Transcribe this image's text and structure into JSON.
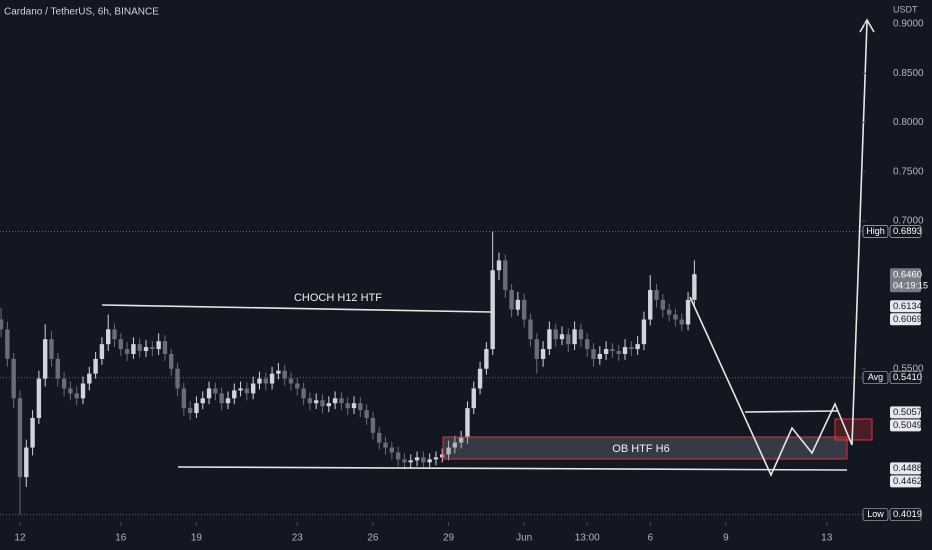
{
  "header": {
    "title": "Cardano / TetherUS, 6h, BINANCE"
  },
  "chart_data": {
    "type": "candlestick",
    "up_color": "#d1d4dc",
    "down_color": "#6a6d78",
    "y_axis_label": "USDT",
    "annotations": [
      "CHOCH H12 HTF",
      "OB HTF H6"
    ],
    "xlim": [
      -0.17,
      136.6
    ],
    "xticks": [
      {
        "value": 3,
        "label": "12"
      },
      {
        "value": 19,
        "label": "16"
      },
      {
        "value": 31,
        "label": "19"
      },
      {
        "value": 47,
        "label": "23"
      },
      {
        "value": 59,
        "label": "26"
      },
      {
        "value": 71,
        "label": "29"
      },
      {
        "value": 83,
        "label": "Jun"
      },
      {
        "value": 93,
        "label": "13:00"
      },
      {
        "value": 103,
        "label": "6"
      },
      {
        "value": 115,
        "label": "9"
      },
      {
        "value": 131,
        "label": "13"
      }
    ],
    "ylim": [
      0.3944,
      0.9244
    ],
    "yticks": [
      {
        "value": 0.9,
        "label": "0.9000"
      },
      {
        "value": 0.85,
        "label": "0.8500"
      },
      {
        "value": 0.8,
        "label": "0.8000"
      },
      {
        "value": 0.75,
        "label": "0.7500"
      },
      {
        "value": 0.7,
        "label": "0.7000"
      },
      {
        "value": 0.55,
        "label": "0.5500"
      }
    ],
    "price_labels": [
      {
        "tag": "High",
        "value": 0.6893,
        "value_label": "0.6893",
        "style": "tag",
        "line": true
      },
      {
        "value": 0.646,
        "value_label": "0.6460",
        "extra": "04:19:15",
        "style": "current"
      },
      {
        "value": 0.6134,
        "value_label": "0.6134",
        "style": "plain"
      },
      {
        "value": 0.6069,
        "value_label": "0.6069",
        "style": "plain"
      },
      {
        "tag": "Avg",
        "value": 0.541,
        "value_label": "0.5410",
        "style": "tag",
        "line": true
      },
      {
        "value": 0.5057,
        "value_label": "0.5057",
        "style": "plain"
      },
      {
        "value": 0.5049,
        "value_label": "0.5049",
        "style": "plain"
      },
      {
        "value": 0.4488,
        "value_label": "0.4488",
        "style": "plain"
      },
      {
        "value": 0.4462,
        "value_label": "0.4462",
        "style": "plain"
      },
      {
        "tag": "Low",
        "value": 0.4019,
        "value_label": "0.4019",
        "style": "tag",
        "line": true
      }
    ],
    "ohlc": [
      [
        0.6,
        0.612,
        0.582,
        0.59
      ],
      [
        0.59,
        0.598,
        0.552,
        0.56
      ],
      [
        0.56,
        0.566,
        0.51,
        0.52
      ],
      [
        0.52,
        0.528,
        0.4019,
        0.44
      ],
      [
        0.44,
        0.478,
        0.43,
        0.47
      ],
      [
        0.47,
        0.508,
        0.462,
        0.5
      ],
      [
        0.5,
        0.548,
        0.494,
        0.54
      ],
      [
        0.54,
        0.595,
        0.532,
        0.58
      ],
      [
        0.58,
        0.588,
        0.552,
        0.56
      ],
      [
        0.56,
        0.566,
        0.532,
        0.54
      ],
      [
        0.54,
        0.546,
        0.522,
        0.53
      ],
      [
        0.53,
        0.537,
        0.518,
        0.525
      ],
      [
        0.525,
        0.532,
        0.513,
        0.52
      ],
      [
        0.52,
        0.542,
        0.514,
        0.535
      ],
      [
        0.535,
        0.552,
        0.528,
        0.545
      ],
      [
        0.545,
        0.567,
        0.54,
        0.56
      ],
      [
        0.56,
        0.582,
        0.554,
        0.575
      ],
      [
        0.575,
        0.605,
        0.568,
        0.59
      ],
      [
        0.59,
        0.596,
        0.572,
        0.58
      ],
      [
        0.58,
        0.586,
        0.563,
        0.57
      ],
      [
        0.57,
        0.577,
        0.558,
        0.565
      ],
      [
        0.565,
        0.582,
        0.56,
        0.575
      ],
      [
        0.575,
        0.581,
        0.561,
        0.568
      ],
      [
        0.568,
        0.579,
        0.562,
        0.572
      ],
      [
        0.572,
        0.578,
        0.563,
        0.57
      ],
      [
        0.57,
        0.586,
        0.564,
        0.578
      ],
      [
        0.578,
        0.584,
        0.558,
        0.565
      ],
      [
        0.565,
        0.57,
        0.543,
        0.55
      ],
      [
        0.55,
        0.556,
        0.522,
        0.53
      ],
      [
        0.53,
        0.536,
        0.502,
        0.51
      ],
      [
        0.51,
        0.517,
        0.498,
        0.505
      ],
      [
        0.505,
        0.522,
        0.5,
        0.515
      ],
      [
        0.515,
        0.527,
        0.509,
        0.52
      ],
      [
        0.52,
        0.537,
        0.514,
        0.53
      ],
      [
        0.53,
        0.536,
        0.518,
        0.525
      ],
      [
        0.525,
        0.531,
        0.508,
        0.515
      ],
      [
        0.515,
        0.527,
        0.509,
        0.52
      ],
      [
        0.52,
        0.535,
        0.514,
        0.528
      ],
      [
        0.528,
        0.537,
        0.522,
        0.53
      ],
      [
        0.53,
        0.536,
        0.518,
        0.525
      ],
      [
        0.525,
        0.542,
        0.519,
        0.535
      ],
      [
        0.535,
        0.547,
        0.529,
        0.54
      ],
      [
        0.54,
        0.546,
        0.528,
        0.535
      ],
      [
        0.535,
        0.552,
        0.529,
        0.545
      ],
      [
        0.545,
        0.556,
        0.539,
        0.548
      ],
      [
        0.548,
        0.554,
        0.533,
        0.54
      ],
      [
        0.54,
        0.546,
        0.528,
        0.535
      ],
      [
        0.535,
        0.541,
        0.523,
        0.53
      ],
      [
        0.53,
        0.536,
        0.513,
        0.52
      ],
      [
        0.52,
        0.526,
        0.508,
        0.515
      ],
      [
        0.515,
        0.525,
        0.509,
        0.518
      ],
      [
        0.518,
        0.524,
        0.505,
        0.512
      ],
      [
        0.512,
        0.522,
        0.506,
        0.515
      ],
      [
        0.515,
        0.527,
        0.509,
        0.52
      ],
      [
        0.52,
        0.526,
        0.508,
        0.515
      ],
      [
        0.515,
        0.521,
        0.503,
        0.51
      ],
      [
        0.51,
        0.522,
        0.504,
        0.515
      ],
      [
        0.515,
        0.521,
        0.501,
        0.508
      ],
      [
        0.508,
        0.514,
        0.493,
        0.5
      ],
      [
        0.5,
        0.506,
        0.478,
        0.485
      ],
      [
        0.485,
        0.491,
        0.468,
        0.475
      ],
      [
        0.475,
        0.481,
        0.463,
        0.47
      ],
      [
        0.47,
        0.476,
        0.458,
        0.465
      ],
      [
        0.465,
        0.471,
        0.451,
        0.458
      ],
      [
        0.458,
        0.464,
        0.448,
        0.455
      ],
      [
        0.455,
        0.463,
        0.449,
        0.457
      ],
      [
        0.457,
        0.466,
        0.451,
        0.46
      ],
      [
        0.46,
        0.466,
        0.449,
        0.455
      ],
      [
        0.455,
        0.464,
        0.45,
        0.458
      ],
      [
        0.458,
        0.466,
        0.452,
        0.46
      ],
      [
        0.46,
        0.469,
        0.455,
        0.463
      ],
      [
        0.463,
        0.477,
        0.457,
        0.47
      ],
      [
        0.47,
        0.482,
        0.464,
        0.475
      ],
      [
        0.475,
        0.487,
        0.469,
        0.48
      ],
      [
        0.48,
        0.517,
        0.474,
        0.51
      ],
      [
        0.51,
        0.537,
        0.504,
        0.53
      ],
      [
        0.53,
        0.557,
        0.524,
        0.55
      ],
      [
        0.55,
        0.577,
        0.544,
        0.57
      ],
      [
        0.57,
        0.6893,
        0.564,
        0.65
      ],
      [
        0.65,
        0.668,
        0.64,
        0.66
      ],
      [
        0.66,
        0.666,
        0.622,
        0.63
      ],
      [
        0.63,
        0.636,
        0.602,
        0.61
      ],
      [
        0.61,
        0.628,
        0.604,
        0.62
      ],
      [
        0.62,
        0.626,
        0.592,
        0.6
      ],
      [
        0.6,
        0.606,
        0.572,
        0.58
      ],
      [
        0.58,
        0.586,
        0.545,
        0.56
      ],
      [
        0.56,
        0.578,
        0.552,
        0.57
      ],
      [
        0.57,
        0.598,
        0.564,
        0.59
      ],
      [
        0.59,
        0.596,
        0.572,
        0.58
      ],
      [
        0.58,
        0.593,
        0.574,
        0.585
      ],
      [
        0.585,
        0.591,
        0.567,
        0.575
      ],
      [
        0.575,
        0.598,
        0.569,
        0.59
      ],
      [
        0.59,
        0.596,
        0.572,
        0.58
      ],
      [
        0.58,
        0.586,
        0.562,
        0.57
      ],
      [
        0.57,
        0.576,
        0.552,
        0.56
      ],
      [
        0.56,
        0.573,
        0.554,
        0.565
      ],
      [
        0.565,
        0.578,
        0.559,
        0.57
      ],
      [
        0.57,
        0.576,
        0.561,
        0.568
      ],
      [
        0.568,
        0.574,
        0.558,
        0.565
      ],
      [
        0.565,
        0.58,
        0.559,
        0.572
      ],
      [
        0.572,
        0.578,
        0.563,
        0.57
      ],
      [
        0.57,
        0.583,
        0.564,
        0.575
      ],
      [
        0.575,
        0.608,
        0.569,
        0.6
      ],
      [
        0.6,
        0.645,
        0.594,
        0.63
      ],
      [
        0.63,
        0.636,
        0.612,
        0.62
      ],
      [
        0.62,
        0.626,
        0.602,
        0.61
      ],
      [
        0.61,
        0.616,
        0.598,
        0.605
      ],
      [
        0.605,
        0.611,
        0.593,
        0.6
      ],
      [
        0.6,
        0.606,
        0.588,
        0.595
      ],
      [
        0.595,
        0.628,
        0.589,
        0.62
      ],
      [
        0.62,
        0.66,
        0.614,
        0.646
      ]
    ]
  }
}
